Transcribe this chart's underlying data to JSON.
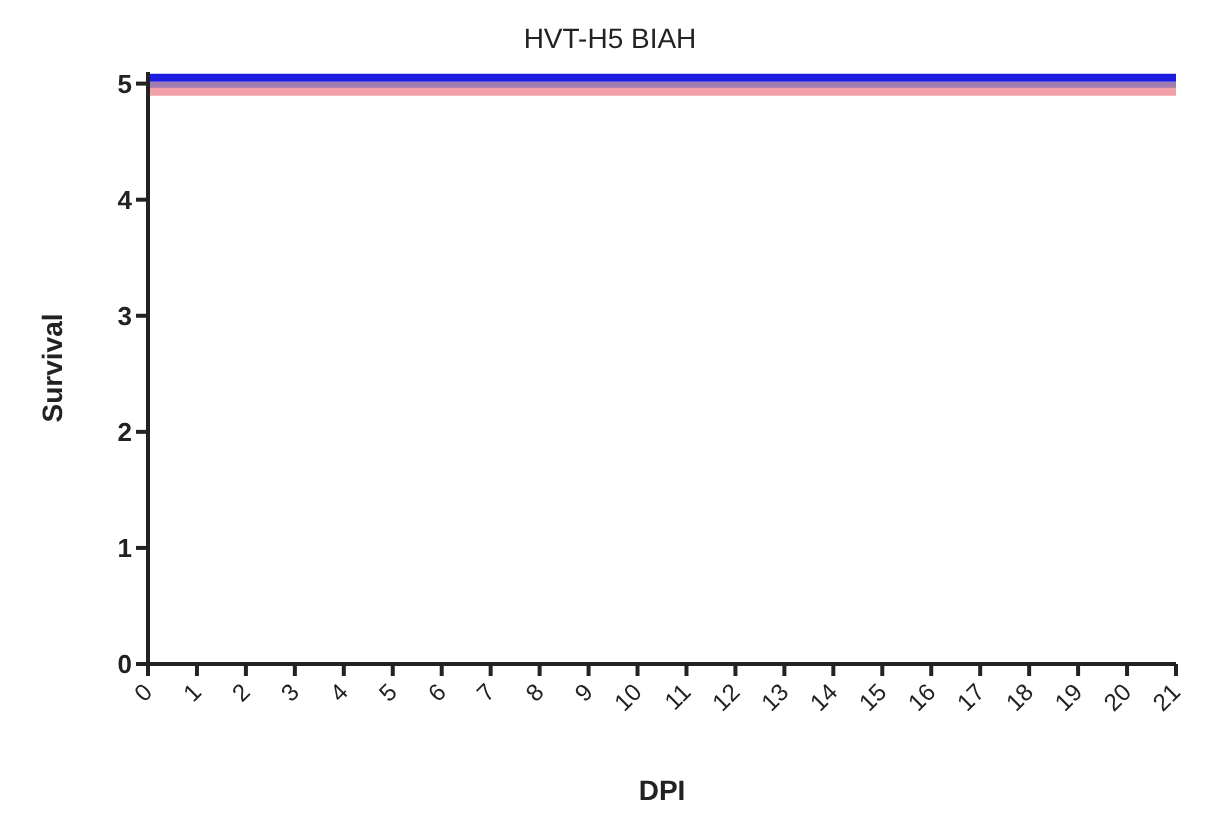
{
  "chart_data": {
    "type": "line",
    "title": "HVT-H5 BIAH",
    "xlabel": "DPI",
    "ylabel": "Survival",
    "x": [
      0,
      21
    ],
    "series": [
      {
        "color": "#1c1ce0",
        "values": [
          5.05,
          5.05
        ]
      },
      {
        "color": "#a07cb0",
        "values": [
          4.98,
          4.98
        ]
      },
      {
        "color": "#f2a0a8",
        "values": [
          4.93,
          4.93
        ]
      }
    ],
    "xlim": [
      0,
      21
    ],
    "xticks": [
      0,
      1,
      2,
      3,
      4,
      5,
      6,
      7,
      8,
      9,
      10,
      11,
      12,
      13,
      14,
      15,
      16,
      17,
      18,
      19,
      20,
      21
    ],
    "ylim": [
      0,
      5.1
    ],
    "yticks": [
      0,
      1,
      2,
      3,
      4,
      5
    ],
    "grid": false,
    "legend": false,
    "marker": "none",
    "line_style": "solid"
  }
}
